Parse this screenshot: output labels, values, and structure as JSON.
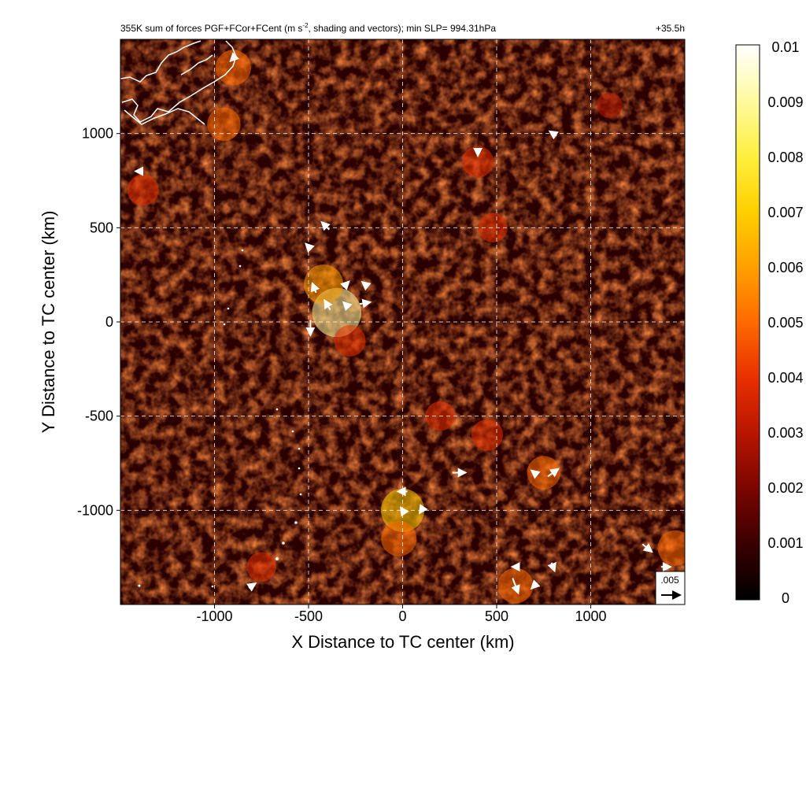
{
  "chart_data": {
    "type": "heatmap",
    "title": "355K sum of forces PGF+FCor+FCent (m s",
    "title_sup": "-2",
    "title_rest": ", shading and vectors); min SLP= 994.31hPa",
    "lead_time": "+35.5h",
    "xlabel": "X Distance to TC center (km)",
    "ylabel": "Y Distance to TC center (km)",
    "xlim": [
      -1500,
      1500
    ],
    "ylim": [
      -1500,
      1500
    ],
    "x_ticks": [
      -1000,
      -500,
      0,
      500,
      1000
    ],
    "y_ticks": [
      -1000,
      -500,
      0,
      500,
      1000
    ],
    "x_tick_labels": [
      "-1000",
      "-500",
      "0",
      "500",
      "1000"
    ],
    "y_tick_labels": [
      "-1000",
      "-500",
      "0",
      "500",
      "1000"
    ],
    "grid": true,
    "colorbar": {
      "min": 0,
      "max": 0.01,
      "ticks": [
        0,
        0.001,
        0.002,
        0.003,
        0.004,
        0.005,
        0.006,
        0.007,
        0.008,
        0.009,
        0.01
      ],
      "tick_labels": [
        "0",
        "0.001",
        "0.002",
        "0.003",
        "0.004",
        "0.005",
        "0.006",
        "0.007",
        "0.008",
        "0.009",
        "0.01"
      ],
      "colors": [
        "#000000",
        "#3a0000",
        "#7a0500",
        "#b81500",
        "#e83000",
        "#ff6a00",
        "#ffa000",
        "#ffd000",
        "#ffef40",
        "#fffaa0",
        "#ffffff"
      ]
    },
    "vector_key": {
      "value": 0.005,
      "label": ".005"
    },
    "hotspots": [
      {
        "x": -350,
        "y": 50,
        "v": 0.0085
      },
      {
        "x": -420,
        "y": 200,
        "v": 0.006
      },
      {
        "x": -280,
        "y": -100,
        "v": 0.004
      },
      {
        "x": 0,
        "y": -1000,
        "v": 0.007
      },
      {
        "x": -20,
        "y": -1150,
        "v": 0.005
      },
      {
        "x": 450,
        "y": -600,
        "v": 0.004
      },
      {
        "x": 750,
        "y": -800,
        "v": 0.0045
      },
      {
        "x": 1450,
        "y": -1200,
        "v": 0.005
      },
      {
        "x": 400,
        "y": 850,
        "v": 0.004
      },
      {
        "x": 480,
        "y": 500,
        "v": 0.0035
      },
      {
        "x": -1380,
        "y": 700,
        "v": 0.004
      },
      {
        "x": -950,
        "y": 1050,
        "v": 0.0045
      },
      {
        "x": -900,
        "y": 1350,
        "v": 0.005
      },
      {
        "x": 600,
        "y": -1400,
        "v": 0.005
      },
      {
        "x": -750,
        "y": -1300,
        "v": 0.0035
      },
      {
        "x": 200,
        "y": -500,
        "v": 0.0035
      },
      {
        "x": 1100,
        "y": 1150,
        "v": 0.0025
      }
    ],
    "vectors": [
      {
        "x": -470,
        "y": 180,
        "u": -0.001,
        "v": 0.0025
      },
      {
        "x": -500,
        "y": 400,
        "u": -0.0015,
        "v": 0.0015
      },
      {
        "x": -410,
        "y": 510,
        "u": -0.002,
        "v": 0.002
      },
      {
        "x": -490,
        "y": -30,
        "u": 0.0,
        "v": -0.004
      },
      {
        "x": -400,
        "y": 90,
        "u": -0.0015,
        "v": 0.0025
      },
      {
        "x": -300,
        "y": 90,
        "u": -0.0015,
        "v": 0.0015
      },
      {
        "x": -200,
        "y": 100,
        "u": 0.0028,
        "v": 0.0005
      },
      {
        "x": -300,
        "y": 200,
        "u": 0.0015,
        "v": 0.0015
      },
      {
        "x": -200,
        "y": 200,
        "u": -0.0015,
        "v": 0.0012
      },
      {
        "x": 300,
        "y": -800,
        "u": 0.0035,
        "v": 0.0
      },
      {
        "x": 800,
        "y": -800,
        "u": 0.0028,
        "v": 0.002
      },
      {
        "x": 700,
        "y": -800,
        "u": -0.0015,
        "v": 0.0012
      },
      {
        "x": 0,
        "y": -900,
        "u": -0.0025,
        "v": 0.0
      },
      {
        "x": 0,
        "y": -1000,
        "u": -0.001,
        "v": 0.0015
      },
      {
        "x": 100,
        "y": -1000,
        "u": -0.001,
        "v": -0.0015
      },
      {
        "x": -1400,
        "y": 800,
        "u": -0.002,
        "v": 0.0
      },
      {
        "x": -900,
        "y": 1400,
        "u": -0.0015,
        "v": -0.0015
      },
      {
        "x": 400,
        "y": 900,
        "u": 0.0,
        "v": -0.0018
      },
      {
        "x": 1300,
        "y": -1200,
        "u": 0.0025,
        "v": -0.002
      },
      {
        "x": 1400,
        "y": -1300,
        "u": 0.0025,
        "v": 0.0
      },
      {
        "x": 600,
        "y": -1400,
        "u": 0.0015,
        "v": -0.004
      },
      {
        "x": 700,
        "y": -1400,
        "u": -0.0015,
        "v": -0.0015
      },
      {
        "x": 800,
        "y": -1300,
        "u": 0.0008,
        "v": -0.0022
      },
      {
        "x": 600,
        "y": -1300,
        "u": -0.0018,
        "v": 0.0
      },
      {
        "x": 800,
        "y": 1000,
        "u": -0.0018,
        "v": 0.0012
      },
      {
        "x": -800,
        "y": -1400,
        "u": 0.0018,
        "v": 0.0012
      },
      {
        "x": -1400,
        "y": -1400,
        "u": 0.0,
        "v": 0.0
      }
    ]
  }
}
